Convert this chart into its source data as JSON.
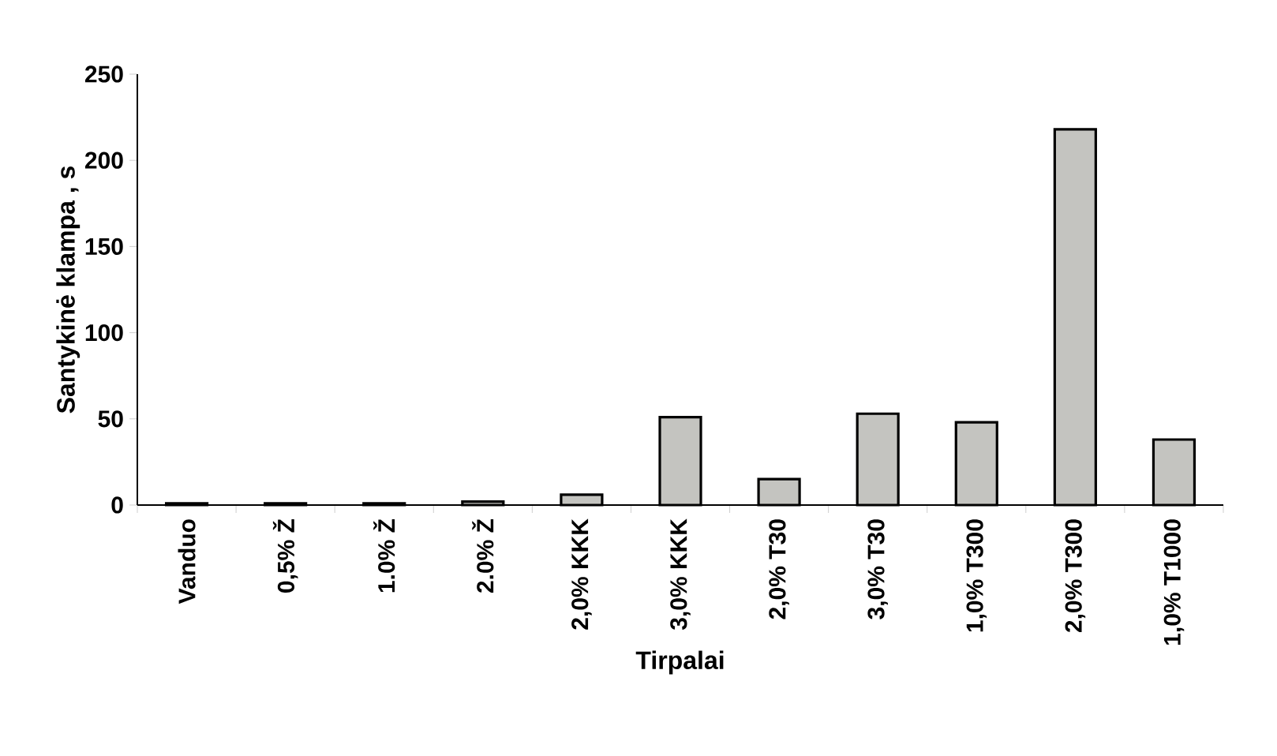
{
  "chart_data": {
    "type": "bar",
    "xlabel": "Tirpalai",
    "ylabel": "Santykinė klampa , s",
    "categories": [
      "Vanduo",
      "0,5% Ž",
      "1.0% Ž",
      "2.0% Ž",
      "2,0% KKK",
      "3,0% KKK",
      "2,0% T30",
      "3,0% T30",
      "1,0% T300",
      "2,0% T300",
      "1,0% T1000"
    ],
    "values": [
      1,
      1,
      1,
      2,
      6,
      51,
      15,
      53,
      48,
      218,
      38
    ],
    "color": "#c4c4c0",
    "ylim": [
      0,
      250
    ],
    "yticks": [
      0,
      50,
      100,
      150,
      200,
      250
    ]
  }
}
